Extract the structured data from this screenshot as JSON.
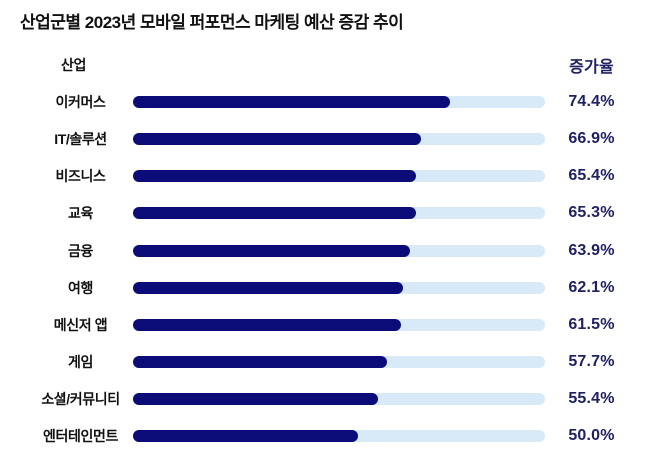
{
  "title": "산업군별 2023년 모바일 퍼포먼스 마케팅 예산 증감 추이",
  "columns": {
    "industry": "산업",
    "growth": "증가율"
  },
  "chart_data": {
    "type": "bar",
    "orientation": "horizontal",
    "title": "산업군별 2023년 모바일 퍼포먼스 마케팅 예산 증감 추이",
    "categories": [
      "이커머스",
      "IT/솔루션",
      "비즈니스",
      "교육",
      "금융",
      "여행",
      "메신저 앱",
      "게임",
      "소셜/커뮤니티",
      "엔터테인먼트"
    ],
    "values": [
      74.4,
      66.9,
      65.4,
      65.3,
      63.9,
      62.1,
      61.5,
      57.7,
      55.4,
      50.0
    ],
    "value_labels": [
      "74.4%",
      "66.9%",
      "65.4%",
      "65.3%",
      "63.9%",
      "62.1%",
      "61.5%",
      "57.7%",
      "55.4%",
      "50.0%"
    ],
    "xlabel": "산업",
    "ylabel": "증가율",
    "xlim": [
      0,
      100
    ],
    "unit": "%",
    "grid": false,
    "legend": "none",
    "colors": {
      "bar_fill": "#0c0c78",
      "bar_track": "#d8e9f7",
      "value_text": "#1f2163",
      "title_text": "#111111"
    }
  }
}
